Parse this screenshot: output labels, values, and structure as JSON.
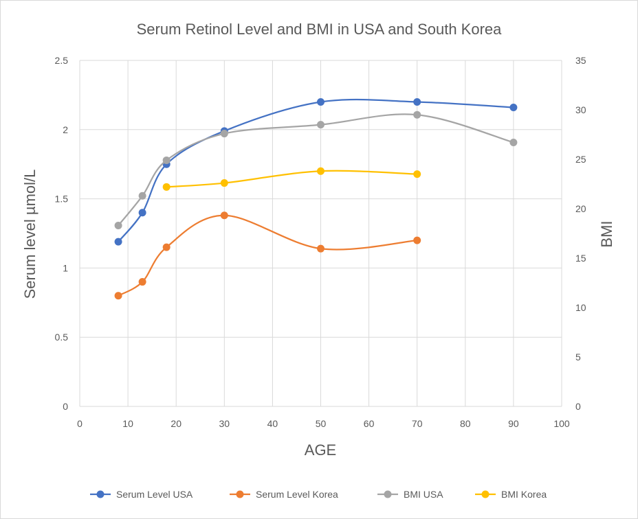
{
  "chart_data": {
    "type": "line",
    "title": "Serum Retinol Level and BMI in USA and South Korea",
    "xlabel": "AGE",
    "ylabel": "Serum level µmol/L",
    "y2label": "BMI",
    "xlim": [
      0,
      100
    ],
    "ylim": [
      0,
      2.5
    ],
    "y2lim": [
      0,
      35
    ],
    "xticks": [
      "0",
      "10",
      "20",
      "30",
      "40",
      "50",
      "60",
      "70",
      "80",
      "90",
      "100"
    ],
    "yticks": [
      "0",
      "0.5",
      "1",
      "1.5",
      "2",
      "2.5"
    ],
    "y2ticks": [
      "0",
      "5",
      "10",
      "15",
      "20",
      "25",
      "30",
      "35"
    ],
    "grid": true,
    "legend_position": "bottom",
    "series": [
      {
        "name": "Serum Level USA",
        "axis": "left",
        "color": "#4472C4",
        "x": [
          8,
          13,
          18,
          30,
          50,
          70,
          90
        ],
        "y": [
          1.19,
          1.4,
          1.75,
          1.99,
          2.2,
          2.2,
          2.16
        ]
      },
      {
        "name": "Serum Level Korea",
        "axis": "left",
        "color": "#ED7D31",
        "x": [
          8,
          13,
          18,
          30,
          50,
          70
        ],
        "y": [
          0.8,
          0.9,
          1.15,
          1.38,
          1.14,
          1.2
        ]
      },
      {
        "name": "BMI USA",
        "axis": "right",
        "color": "#A5A5A5",
        "x": [
          8,
          13,
          18,
          30,
          50,
          70,
          90
        ],
        "y": [
          18.3,
          21.3,
          24.9,
          27.6,
          28.5,
          29.5,
          26.7
        ]
      },
      {
        "name": "BMI Korea",
        "axis": "right",
        "color": "#FFC000",
        "x": [
          18,
          30,
          50,
          70
        ],
        "y": [
          22.2,
          22.6,
          23.8,
          23.5
        ]
      }
    ]
  }
}
